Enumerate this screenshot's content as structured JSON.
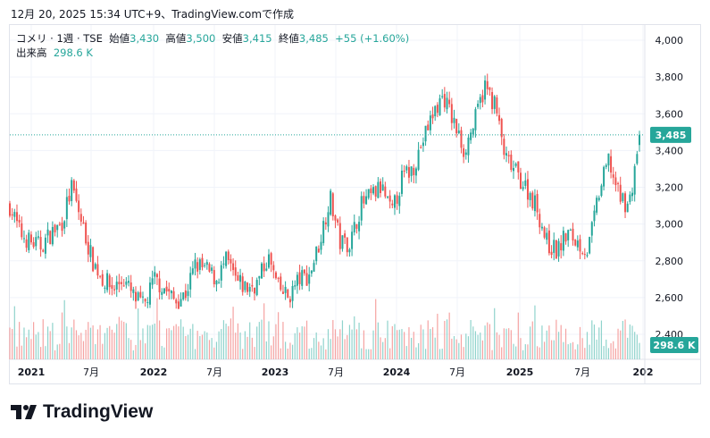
{
  "caption": "12月 20, 2025 15:34 UTC+9、TradingView.comで作成",
  "legend": {
    "symbol": "コメリ · 1週 · TSE",
    "open_label": "始値",
    "open": "3,430",
    "high_label": "高値",
    "high": "3,500",
    "low_label": "安値",
    "low": "3,415",
    "close_label": "終値",
    "close": "3,485",
    "change": "+55 (+1.60%)",
    "volume_label": "出来高",
    "volume": "298.6 K"
  },
  "brand": "TradingView",
  "colors": {
    "up": "#26a69a",
    "down": "#ef5350",
    "up_vol": "#8fd3cc",
    "down_vol": "#f5a3a2"
  },
  "chart_data": {
    "type": "candlestick",
    "interval": "weekly",
    "ylim": [
      2400,
      4000
    ],
    "yticks": [
      "4,000",
      "3,800",
      "3,600",
      "3,400",
      "3,200",
      "3,000",
      "2,800",
      "2,600",
      "2,400"
    ],
    "ytick_values": [
      4000,
      3800,
      3600,
      3400,
      3200,
      3000,
      2800,
      2600,
      2400
    ],
    "xticks": [
      "2021",
      "7月",
      "2022",
      "7月",
      "2023",
      "7月",
      "2024",
      "7月",
      "2025",
      "7月",
      "202"
    ],
    "last_price_label": "3,485",
    "last_price": 3485,
    "volume_label": "298.6 K",
    "monthly_closes_from_2020_11": [
      3100,
      2950,
      2900,
      2880,
      2950,
      3000,
      3200,
      3000,
      2800,
      2700,
      2650,
      2700,
      2600,
      2550,
      2700,
      2650,
      2580,
      2620,
      2780,
      2750,
      2700,
      2800,
      2680,
      2650,
      2680,
      2820,
      2650,
      2600,
      2700,
      2720,
      2900,
      3150,
      2900,
      2900,
      3100,
      3150,
      3200,
      3050,
      3250,
      3300,
      3450,
      3600,
      3700,
      3550,
      3400,
      3550,
      3750,
      3650,
      3350,
      3280,
      3200,
      3100,
      2900,
      2850,
      2950,
      2900,
      2850,
      3150,
      3350,
      3150,
      3100,
      3485
    ]
  }
}
